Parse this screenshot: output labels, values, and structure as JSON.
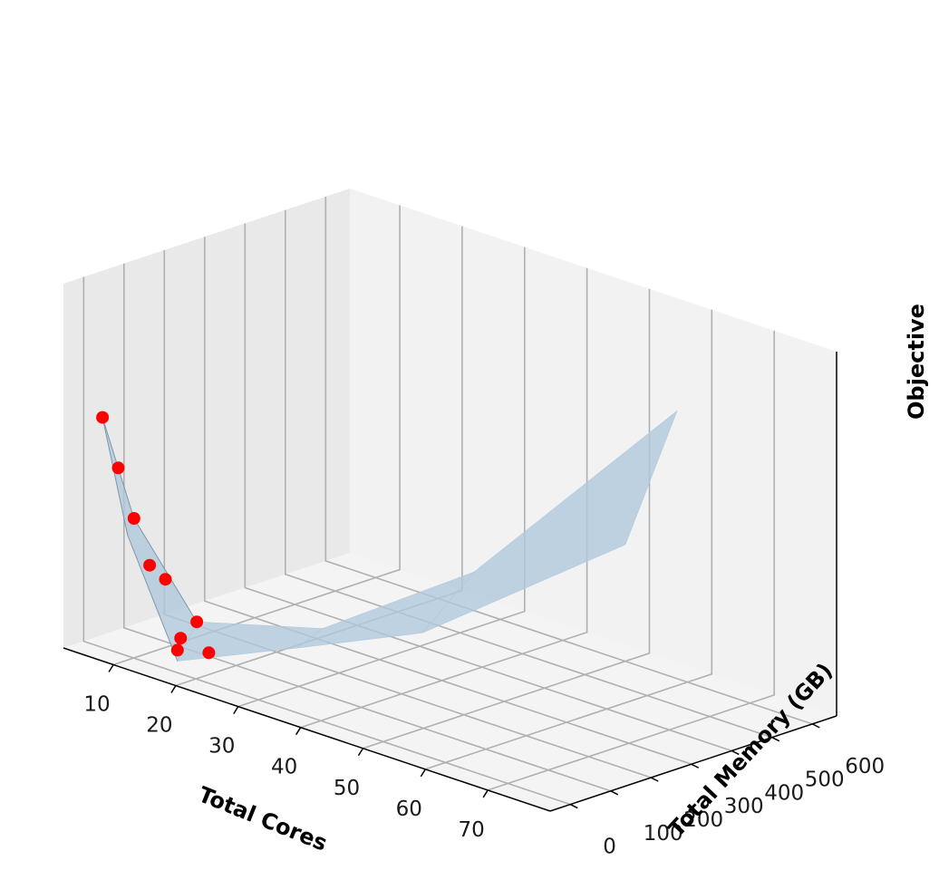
{
  "chart_data": {
    "type": "surface3d",
    "xlabel": "Total Cores",
    "ylabel": "Total Memory (GB)",
    "zlabel": "Objective",
    "x_ticks": [
      10,
      20,
      30,
      40,
      50,
      60,
      70
    ],
    "y_ticks": [
      0,
      100,
      200,
      300,
      400,
      500,
      600
    ],
    "z_ticks": [],
    "xlim": [
      2,
      80
    ],
    "ylim": [
      -50,
      660
    ],
    "zlim": [
      0,
      10
    ],
    "grid": true,
    "colors": {
      "points": "#ff0000",
      "surface": "#b0c8dd",
      "surface_edge": "#5a7186",
      "pane_left": "#e9e9e9",
      "pane_back": "#f2f2f2",
      "pane_floor": "#f4f4f4",
      "grid": "#b0b0b0"
    },
    "points": [
      {
        "cores": 4,
        "memory_gb": 16,
        "objective": 6.2
      },
      {
        "cores": 6,
        "memory_gb": 24,
        "objective": 4.9
      },
      {
        "cores": 8,
        "memory_gb": 32,
        "objective": 3.6
      },
      {
        "cores": 10,
        "memory_gb": 40,
        "objective": 2.4
      },
      {
        "cores": 12,
        "memory_gb": 48,
        "objective": 2.1
      },
      {
        "cores": 16,
        "memory_gb": 64,
        "objective": 1.1
      },
      {
        "cores": 16,
        "memory_gb": 24,
        "objective": 0.8
      },
      {
        "cores": 20,
        "memory_gb": 32,
        "objective": 0.6
      },
      {
        "cores": 16,
        "memory_gb": 16,
        "objective": 0.5
      }
    ],
    "surface_a": [
      {
        "cores": 4,
        "memory_gb": 16,
        "objective": 6.2
      },
      {
        "cores": 8,
        "memory_gb": 32,
        "objective": 3.6
      },
      {
        "cores": 16,
        "memory_gb": 64,
        "objective": 1.1
      },
      {
        "cores": 32,
        "memory_gb": 128,
        "objective": 1.6
      },
      {
        "cores": 48,
        "memory_gb": 256,
        "objective": 3.6
      },
      {
        "cores": 64,
        "memory_gb": 512,
        "objective": 8.0
      }
    ],
    "surface_b": [
      {
        "cores": 4,
        "memory_gb": 16,
        "objective": 6.2
      },
      {
        "cores": 8,
        "memory_gb": 16,
        "objective": 3.2
      },
      {
        "cores": 16,
        "memory_gb": 16,
        "objective": 0.2
      },
      {
        "cores": 32,
        "memory_gb": 64,
        "objective": 1.3
      },
      {
        "cores": 48,
        "memory_gb": 128,
        "objective": 2.4
      },
      {
        "cores": 64,
        "memory_gb": 384,
        "objective": 4.8
      }
    ]
  }
}
